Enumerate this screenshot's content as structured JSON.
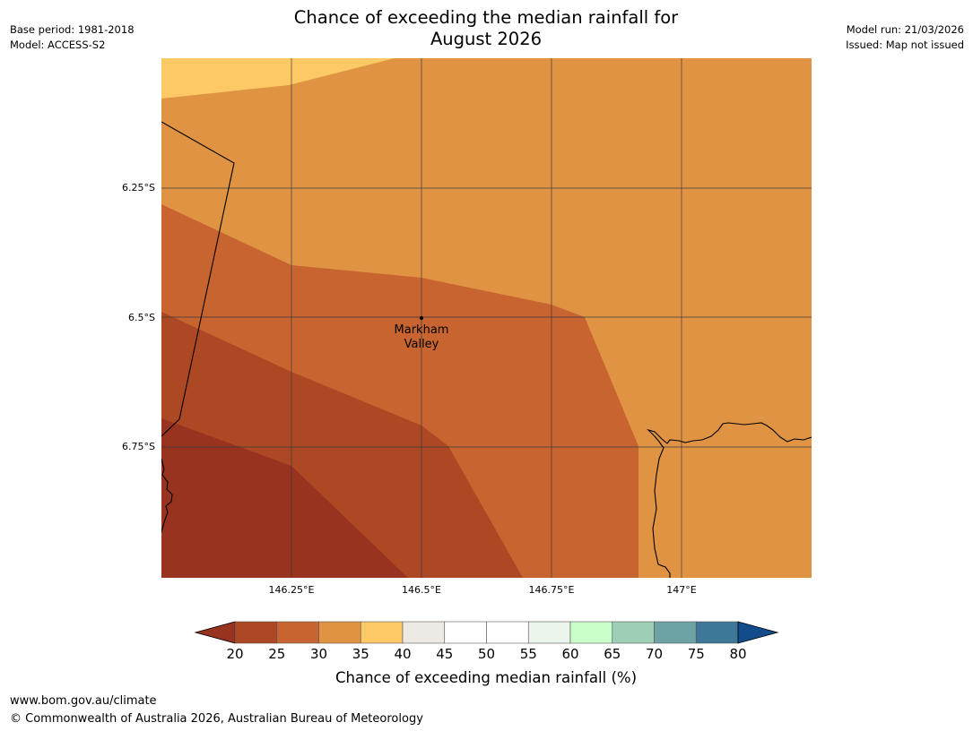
{
  "title": {
    "line1": "Chance of exceeding the median rainfall for",
    "line2": "August 2026"
  },
  "meta_left": {
    "base_period": "Base period: 1981-2018",
    "model": "Model: ACCESS-S2"
  },
  "meta_right": {
    "model_run": "Model run: 21/03/2026",
    "issued": "Issued: Map not issued"
  },
  "map": {
    "lat_labels": [
      "6.25°S",
      "6.5°S",
      "6.75°S"
    ],
    "lon_labels": [
      "146.25°E",
      "146.5°E",
      "146.75°E",
      "147°E"
    ],
    "place": {
      "line1": "Markham",
      "line2": "Valley"
    },
    "band_colors": {
      "p35_40": "#fdc964",
      "p30_35": "#e09343",
      "p25_30": "#c86430",
      "p20_25": "#ad4824",
      "below_20": "#983320"
    }
  },
  "colorbar": {
    "label": "Chance of exceeding median rainfall (%)",
    "ticks": [
      "20",
      "25",
      "30",
      "35",
      "40",
      "45",
      "50",
      "55",
      "60",
      "65",
      "70",
      "75",
      "80"
    ],
    "under_color": "#983320",
    "over_color": "#134c8a",
    "colors": [
      "#ad4824",
      "#c86430",
      "#e09343",
      "#fdc964",
      "#ede9e4",
      "#ffffff",
      "#ffffff",
      "#ebf5eb",
      "#c9ffc9",
      "#9dcfb7",
      "#6da3a4",
      "#3f7799"
    ]
  },
  "footer": {
    "url": "www.bom.gov.au/climate",
    "copyright": "© Commonwealth of Australia 2026, Australian Bureau of Meteorology"
  }
}
